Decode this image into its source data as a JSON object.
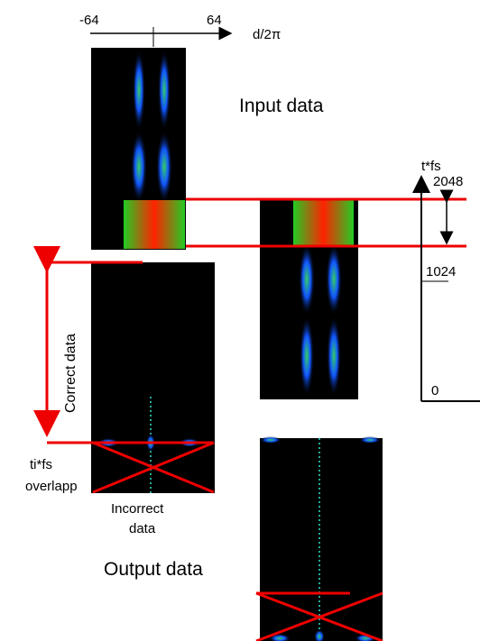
{
  "top_axis": {
    "min_label": "-64",
    "max_label": "64",
    "unit": "d/2π"
  },
  "input_label": "Input data",
  "time_axis": {
    "title": "t*fs",
    "ticks": [
      "2048",
      "1024",
      "0"
    ]
  },
  "correct_label": "Correct data",
  "overlap_label": [
    "ti*fs",
    "overlapp"
  ],
  "incorrect_label": [
    "Incorrect",
    "data"
  ],
  "output_label": "Output data"
}
